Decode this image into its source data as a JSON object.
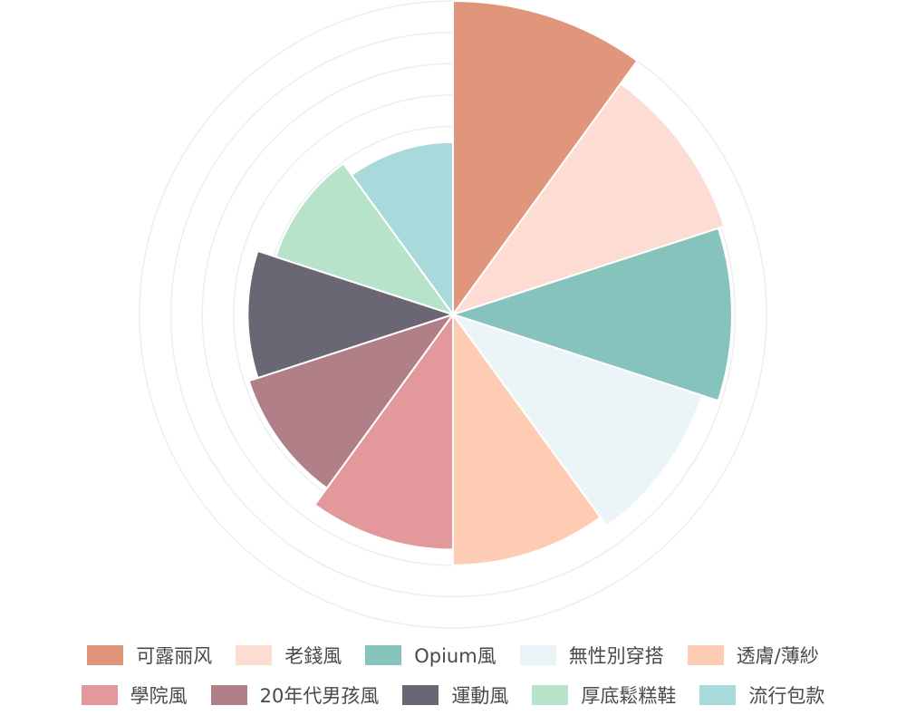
{
  "chart_data": {
    "type": "nightingale-rose",
    "grid": true,
    "legend_position": "bottom",
    "grid_ring_values": [
      20,
      40,
      60,
      80,
      100,
      120,
      140,
      160,
      180,
      200
    ],
    "max_radius_value": 200,
    "start_angle_deg": 0,
    "series": [
      {
        "name": "可露丽风",
        "value": 200,
        "color": "#E0967A"
      },
      {
        "name": "老錢風",
        "value": 182,
        "color": "#FDDCD3"
      },
      {
        "name": "Opium風",
        "value": 178,
        "color": "#86C3BD"
      },
      {
        "name": "無性別穿搭",
        "value": 167,
        "color": "#EBF4F7"
      },
      {
        "name": "透膚/薄紗",
        "value": 160,
        "color": "#FECCB3"
      },
      {
        "name": "學院風",
        "value": 150,
        "color": "#E3989B"
      },
      {
        "name": "20年代男孩風",
        "value": 137,
        "color": "#B17F88"
      },
      {
        "name": "運動風",
        "value": 131,
        "color": "#6B6674"
      },
      {
        "name": "厚底鬆糕鞋",
        "value": 119,
        "color": "#B6E3C9"
      },
      {
        "name": "流行包款",
        "value": 110,
        "color": "#A8D9DB"
      }
    ],
    "grid_color": "#eeeeee"
  }
}
